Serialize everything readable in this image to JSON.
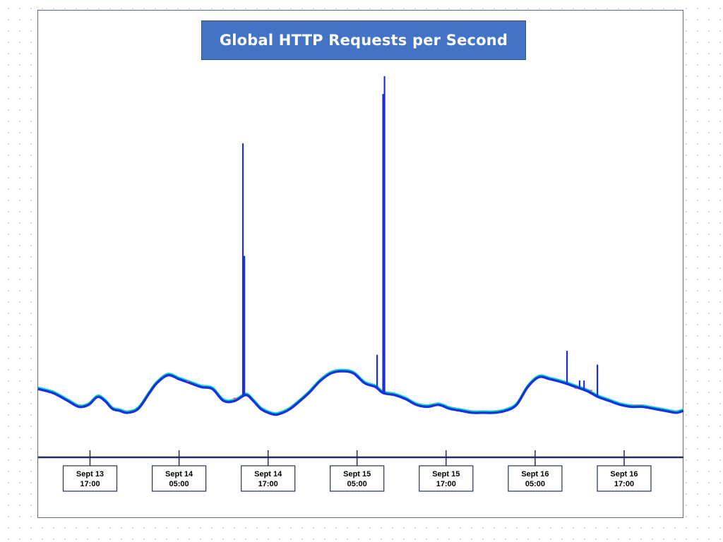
{
  "chart_data": {
    "type": "line",
    "title": "Global HTTP Requests per Second",
    "xlabel": "",
    "ylabel": "",
    "x_range_hours": [
      0,
      87
    ],
    "grid": false,
    "legend": "none",
    "colors": {
      "main": "#1f2fd6",
      "shadow": "#00e0e6",
      "accent": "#ff3b3b",
      "title_bg": "#4472c4",
      "axis": "#1f2f5a"
    },
    "ticks": [
      {
        "line1": "Sept 13",
        "line2": "17:00"
      },
      {
        "line1": "Sept 14",
        "line2": "05:00"
      },
      {
        "line1": "Sept 14",
        "line2": "17:00"
      },
      {
        "line1": "Sept 15",
        "line2": "05:00"
      },
      {
        "line1": "Sept 15",
        "line2": "17:00"
      },
      {
        "line1": "Sept 16",
        "line2": "05:00"
      },
      {
        "line1": "Sept 16",
        "line2": "17:00"
      }
    ],
    "tick_hours": [
      7,
      19,
      31,
      43,
      55,
      67,
      79
    ],
    "series": [
      {
        "x": [
          0,
          2,
          4,
          5.5,
          6.8,
          8,
          9,
          10,
          11,
          12,
          13.5,
          15,
          16,
          17.5,
          19,
          20.5,
          22,
          23.5,
          25,
          26.5,
          28,
          29,
          30,
          31,
          32,
          33,
          34,
          35,
          36.5,
          38,
          39.5,
          41,
          42.5,
          44,
          45.5,
          46.5,
          48,
          49.5,
          51,
          52.5,
          54,
          55.5,
          57,
          58.5,
          60,
          61.5,
          63,
          64.5,
          66,
          67.5,
          69,
          71,
          72.5,
          74,
          75.5,
          77,
          78.5,
          80,
          81.5,
          83,
          84.5,
          86,
          87
        ],
        "y": [
          16,
          14,
          10,
          7,
          8,
          12,
          10,
          6,
          5,
          4,
          6,
          14,
          19,
          23,
          21,
          19,
          17,
          16,
          10,
          10,
          13,
          10,
          6,
          4,
          3,
          4,
          6,
          9,
          14,
          20,
          24,
          25,
          24,
          19,
          17,
          14,
          13,
          11,
          8,
          7,
          8,
          6,
          5,
          4,
          4,
          4,
          5,
          8,
          17,
          22,
          21,
          19,
          17,
          15,
          12,
          10,
          8,
          7,
          7,
          6,
          5,
          4,
          5
        ]
      }
    ],
    "spikes": [
      {
        "x": 27.6,
        "y": 140
      },
      {
        "x": 27.8,
        "y": 83
      },
      {
        "x": 46.5,
        "y": 165
      },
      {
        "x": 46.7,
        "y": 174
      },
      {
        "x": 45.7,
        "y": 33
      },
      {
        "x": 71.3,
        "y": 35
      },
      {
        "x": 73.0,
        "y": 20
      },
      {
        "x": 73.6,
        "y": 20
      },
      {
        "x": 75.4,
        "y": 28
      }
    ]
  }
}
